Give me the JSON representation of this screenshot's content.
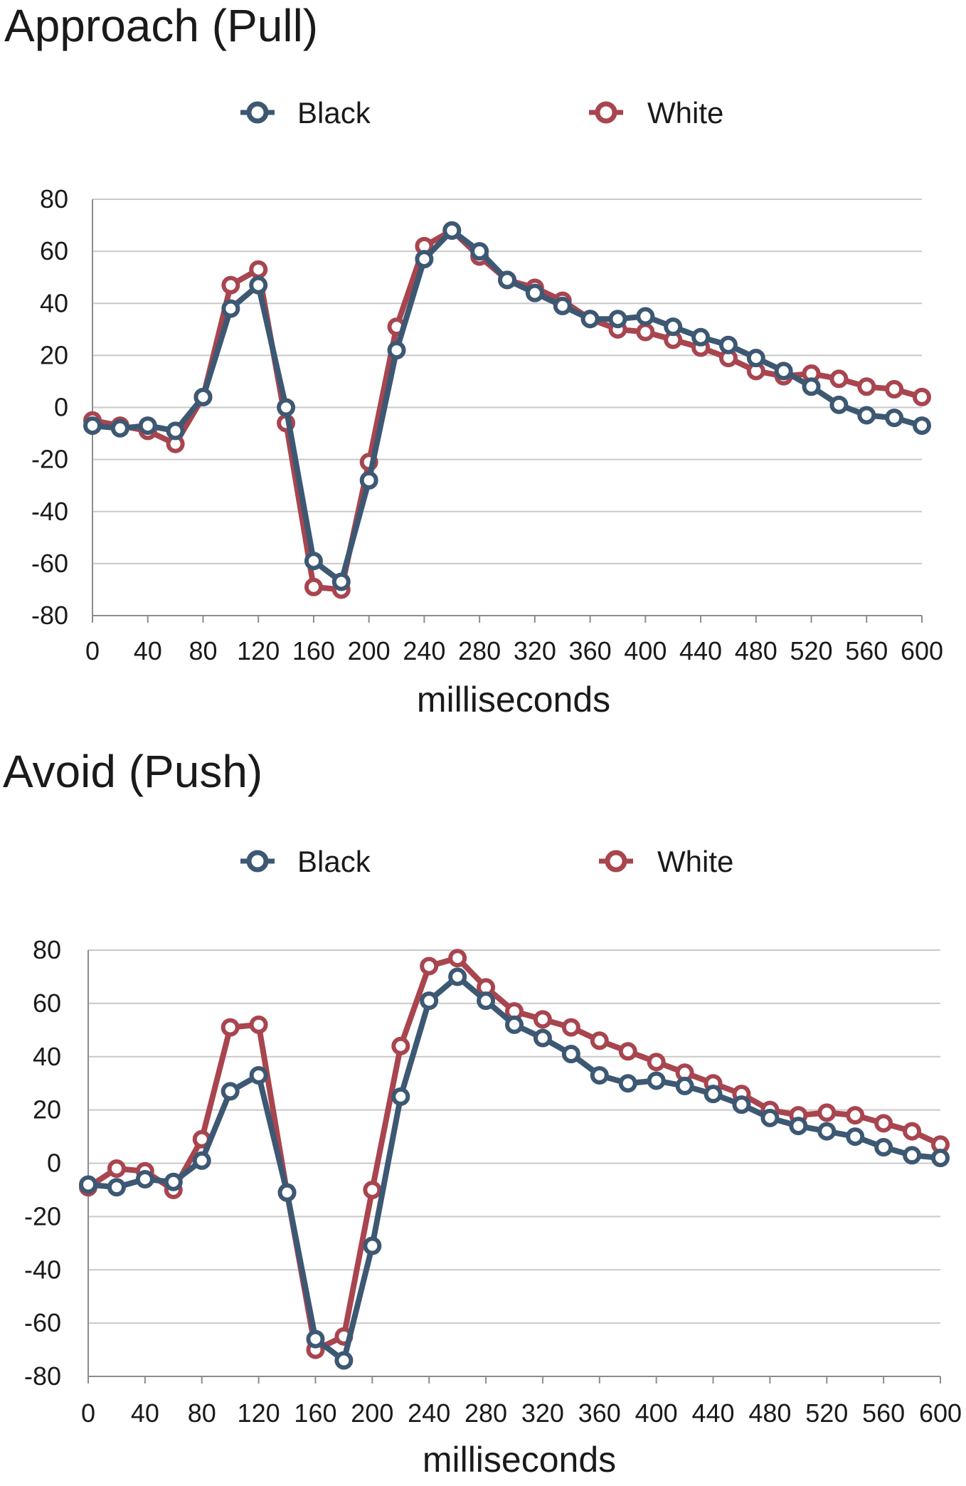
{
  "colors": {
    "black_series": "#3d5873",
    "white_series": "#a8454f"
  },
  "chart_data": [
    {
      "type": "line",
      "title": "Approach (Pull)",
      "xlabel": "milliseconds",
      "ylabel": "",
      "ylim": [
        -80,
        80
      ],
      "xlim": [
        0,
        600
      ],
      "grid": true,
      "legend": "top",
      "yticks": [
        80,
        60,
        40,
        20,
        0,
        -20,
        -40,
        -60,
        -80
      ],
      "xticks": [
        0,
        40,
        80,
        120,
        160,
        200,
        240,
        280,
        320,
        360,
        400,
        440,
        480,
        520,
        560,
        600
      ],
      "x": [
        0,
        20,
        40,
        60,
        80,
        100,
        120,
        140,
        160,
        180,
        200,
        220,
        240,
        260,
        280,
        300,
        320,
        340,
        360,
        380,
        400,
        420,
        440,
        460,
        480,
        500,
        520,
        540,
        560,
        580,
        600
      ],
      "series": [
        {
          "name": "Black",
          "color": "#3d5873",
          "values": [
            -7,
            -8,
            -7,
            -9,
            4,
            38,
            47,
            0,
            -59,
            -67,
            -28,
            22,
            57,
            68,
            60,
            49,
            44,
            39,
            34,
            34,
            35,
            31,
            27,
            24,
            19,
            14,
            8,
            1,
            -3,
            -4,
            -7
          ]
        },
        {
          "name": "White",
          "color": "#a8454f",
          "values": [
            -5,
            -7,
            -9,
            -14,
            4,
            47,
            53,
            -6,
            -69,
            -70,
            -21,
            31,
            62,
            68,
            58,
            49,
            46,
            41,
            34,
            30,
            29,
            26,
            23,
            19,
            14,
            12,
            13,
            11,
            8,
            7,
            4
          ]
        }
      ]
    },
    {
      "type": "line",
      "title": "Avoid (Push)",
      "xlabel": "milliseconds",
      "ylabel": "",
      "ylim": [
        -80,
        80
      ],
      "xlim": [
        0,
        600
      ],
      "grid": true,
      "legend": "top",
      "yticks": [
        80,
        60,
        40,
        20,
        0,
        -20,
        -40,
        -60,
        -80
      ],
      "xticks": [
        0,
        40,
        80,
        120,
        160,
        200,
        240,
        280,
        320,
        360,
        400,
        440,
        480,
        520,
        560,
        600
      ],
      "x": [
        0,
        20,
        40,
        60,
        80,
        100,
        120,
        140,
        160,
        180,
        200,
        220,
        240,
        260,
        280,
        300,
        320,
        340,
        360,
        380,
        400,
        420,
        440,
        460,
        480,
        500,
        520,
        540,
        560,
        580,
        600
      ],
      "series": [
        {
          "name": "Black",
          "color": "#3d5873",
          "values": [
            -8,
            -9,
            -6,
            -7,
            1,
            27,
            33,
            -11,
            -66,
            -74,
            -31,
            25,
            61,
            70,
            61,
            52,
            47,
            41,
            33,
            30,
            31,
            29,
            26,
            22,
            17,
            14,
            12,
            10,
            6,
            3,
            2
          ]
        },
        {
          "name": "White",
          "color": "#a8454f",
          "values": [
            -9,
            -2,
            -3,
            -10,
            9,
            51,
            52,
            -11,
            -70,
            -65,
            -10,
            44,
            74,
            77,
            66,
            57,
            54,
            51,
            46,
            42,
            38,
            34,
            30,
            26,
            20,
            18,
            19,
            18,
            15,
            12,
            7
          ]
        }
      ]
    }
  ]
}
